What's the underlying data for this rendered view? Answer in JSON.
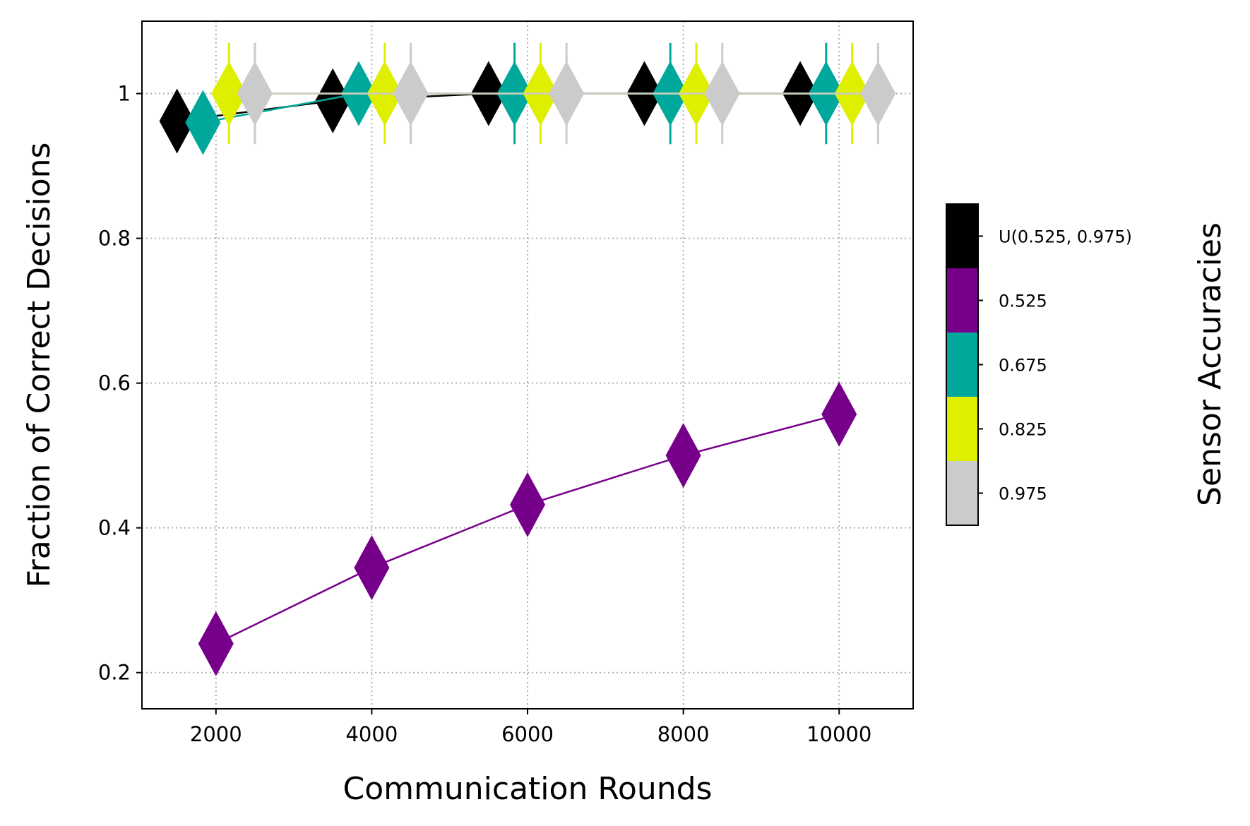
{
  "chart_data": {
    "type": "line",
    "xlabel": "Communication Rounds",
    "ylabel": "Fraction of Correct Decisions",
    "xlim": [
      1050,
      10950
    ],
    "ylim": [
      0.15,
      1.1
    ],
    "xticks": [
      2000,
      4000,
      6000,
      8000,
      10000
    ],
    "xtick_labels": [
      "2000",
      "4000",
      "6000",
      "8000",
      "10000"
    ],
    "yticks": [
      0.2,
      0.4,
      0.6,
      0.8,
      1.0
    ],
    "ytick_labels": [
      "0.2",
      "0.4",
      "0.6",
      "0.8",
      "1"
    ],
    "grid": true,
    "marker": "diamond",
    "x": [
      2000,
      4000,
      6000,
      8000,
      10000
    ],
    "series": [
      {
        "name": "U(0.525, 0.975)",
        "color": "#000000",
        "x_offset": -500,
        "values": [
          0.962,
          0.99,
          1.0,
          1.0,
          1.0
        ],
        "error": [
          0,
          0,
          0,
          0,
          0
        ]
      },
      {
        "name": "0.525",
        "color": "#77008a",
        "x_offset": 0,
        "values": [
          0.24,
          0.345,
          0.432,
          0.5,
          0.557
        ],
        "error": [
          0,
          0,
          0,
          0,
          0
        ]
      },
      {
        "name": "0.675",
        "color": "#00a89c",
        "x_offset": -167,
        "values": [
          0.96,
          1.0,
          1.0,
          1.0,
          1.0
        ],
        "error": [
          0,
          0,
          0.07,
          0.07,
          0.07
        ]
      },
      {
        "name": "0.825",
        "color": "#deef00",
        "x_offset": 167,
        "values": [
          1.0,
          1.0,
          1.0,
          1.0,
          1.0
        ],
        "error": [
          0.07,
          0.07,
          0.07,
          0.07,
          0.07
        ]
      },
      {
        "name": "0.975",
        "color": "#cbcbcb",
        "x_offset": 500,
        "values": [
          1.0,
          1.0,
          1.0,
          1.0,
          1.0
        ],
        "error": [
          0.07,
          0.07,
          0.07,
          0.07,
          0.07
        ]
      }
    ],
    "colorbar": {
      "label": "Sensor Accuracies",
      "entries": [
        {
          "label": "U(0.525, 0.975)",
          "color": "#000000"
        },
        {
          "label": "0.525",
          "color": "#77008a"
        },
        {
          "label": "0.675",
          "color": "#00a89c"
        },
        {
          "label": "0.825",
          "color": "#deef00"
        },
        {
          "label": "0.975",
          "color": "#cbcbcb"
        }
      ]
    }
  }
}
